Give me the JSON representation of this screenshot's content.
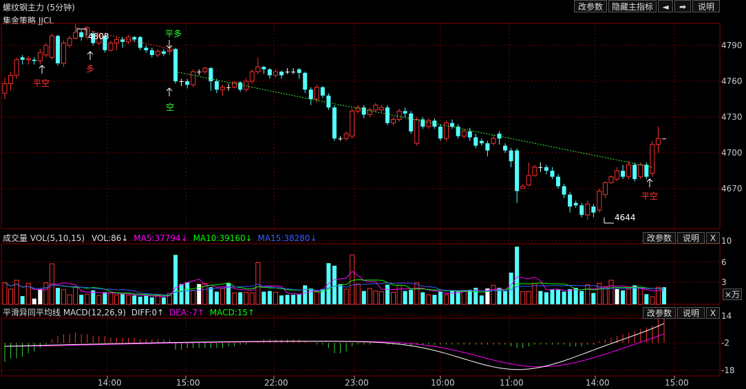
{
  "header": {
    "title": "螺纹钢主力 (5分钟)",
    "strategy": "集金策略 JJCL",
    "btn_params": "改参数",
    "btn_hide": "隐藏主指标",
    "btn_left": "◄",
    "btn_right": "➡",
    "btn_help": "说明"
  },
  "price_axis": [
    "4790",
    "4760",
    "4730",
    "4700",
    "4670"
  ],
  "annotations": {
    "high": "4808",
    "low": "4644",
    "flat_long": "平多",
    "long": "多",
    "short": "空",
    "flat_short_1": "平空",
    "flat_short_2": "平空"
  },
  "volume": {
    "title": "成交量 VOL(5,10,15)",
    "vol": "VOL:86↓",
    "ma5": "MA5:37794↓",
    "ma10": "MA10:39160↓",
    "ma15": "MA15:38280↓",
    "axis": [
      "10",
      "6",
      "3"
    ],
    "unit": "×万",
    "btn_params": "改参数",
    "btn_help": "说明",
    "btn_close": "X"
  },
  "macd": {
    "title": "平滑异同平均线 MACD(12,26,9)",
    "diff": "DIFF:0↑",
    "dea": "DEA:-7↑",
    "macd": "MACD:15↑",
    "axis": [
      "14",
      "-2",
      "-18"
    ],
    "btn_params": "改参数",
    "btn_help": "说明",
    "btn_close": "X"
  },
  "time_axis": [
    "14:00",
    "15:00",
    "22:00",
    "23:00",
    "10:00",
    "11:00",
    "14:00",
    "15:00"
  ],
  "colors": {
    "up": "#ff3232",
    "down": "#54ffff",
    "ma5": "#ff00ff",
    "ma10": "#00ff00",
    "ma15": "#3a5cff",
    "diff": "#ffffff",
    "dea": "#ff00ff",
    "grid": "#7a0000"
  },
  "candles": [
    [
      4750,
      4758,
      4763,
      4745
    ],
    [
      4758,
      4765,
      4768,
      4752
    ],
    [
      4765,
      4778,
      4780,
      4762
    ],
    [
      4780,
      4778,
      4782,
      4774
    ],
    [
      4778,
      4779,
      4781,
      4774
    ],
    [
      4778,
      4777,
      4780,
      4774
    ],
    [
      4777,
      4784,
      4787,
      4774
    ],
    [
      4782,
      4790,
      4792,
      4780
    ],
    [
      4780,
      4798,
      4800,
      4778
    ],
    [
      4798,
      4775,
      4799,
      4773
    ],
    [
      4775,
      4792,
      4794,
      4772
    ],
    [
      4790,
      4796,
      4798,
      4788
    ],
    [
      4796,
      4801,
      4808,
      4795
    ],
    [
      4801,
      4797,
      4803,
      4794
    ],
    [
      4797,
      4805,
      4806,
      4795
    ],
    [
      4800,
      4792,
      4802,
      4790
    ],
    [
      4792,
      4798,
      4800,
      4790
    ],
    [
      4798,
      4786,
      4799,
      4784
    ],
    [
      4786,
      4792,
      4794,
      4785
    ],
    [
      4792,
      4795,
      4797,
      4786
    ],
    [
      4795,
      4793,
      4797,
      4788
    ],
    [
      4793,
      4797,
      4799,
      4791
    ],
    [
      4797,
      4795,
      4798,
      4793
    ],
    [
      4797,
      4788,
      4798,
      4786
    ],
    [
      4788,
      4786,
      4790,
      4784
    ],
    [
      4786,
      4782,
      4788,
      4780
    ],
    [
      4782,
      4785,
      4787,
      4780
    ],
    [
      4785,
      4783,
      4787,
      4781
    ],
    [
      4785,
      4786,
      4788,
      4782
    ],
    [
      4787,
      4760,
      4788,
      4758
    ],
    [
      4760,
      4760,
      4762,
      4756
    ],
    [
      4760,
      4757,
      4762,
      4754
    ],
    [
      4757,
      4768,
      4770,
      4755
    ],
    [
      4768,
      4768,
      4770,
      4765
    ],
    [
      4768,
      4771,
      4772,
      4766
    ],
    [
      4771,
      4760,
      4772,
      4752
    ],
    [
      4760,
      4753,
      4762,
      4750
    ],
    [
      4753,
      4755,
      4757,
      4748
    ],
    [
      4755,
      4755,
      4758,
      4752
    ],
    [
      4755,
      4759,
      4760,
      4754
    ],
    [
      4759,
      4753,
      4760,
      4751
    ],
    [
      4753,
      4760,
      4763,
      4751
    ],
    [
      4760,
      4768,
      4770,
      4758
    ],
    [
      4768,
      4772,
      4780,
      4766
    ],
    [
      4772,
      4770,
      4773,
      4766
    ],
    [
      4770,
      4765,
      4771,
      4762
    ],
    [
      4765,
      4768,
      4770,
      4763
    ],
    [
      4768,
      4765,
      4769,
      4762
    ],
    [
      4768,
      4768,
      4771,
      4766
    ],
    [
      4768,
      4768,
      4771,
      4766
    ],
    [
      4770,
      4767,
      4771,
      4762
    ],
    [
      4767,
      4753,
      4768,
      4750
    ],
    [
      4753,
      4745,
      4755,
      4740
    ],
    [
      4745,
      4755,
      4757,
      4742
    ],
    [
      4755,
      4748,
      4756,
      4746
    ],
    [
      4748,
      4738,
      4750,
      4736
    ],
    [
      4738,
      4712,
      4740,
      4710
    ],
    [
      4712,
      4712,
      4714,
      4710
    ],
    [
      4712,
      4716,
      4718,
      4710
    ],
    [
      4714,
      4735,
      4737,
      4712
    ],
    [
      4735,
      4738,
      4740,
      4733
    ],
    [
      4738,
      4732,
      4740,
      4729
    ],
    [
      4732,
      4736,
      4738,
      4730
    ],
    [
      4736,
      4740,
      4742,
      4734
    ],
    [
      4736,
      4738,
      4740,
      4734
    ],
    [
      4738,
      4725,
      4740,
      4723
    ],
    [
      4725,
      4728,
      4730,
      4723
    ],
    [
      4728,
      4735,
      4737,
      4726
    ],
    [
      4735,
      4733,
      4738,
      4730
    ],
    [
      4733,
      4718,
      4735,
      4716
    ],
    [
      4708,
      4728,
      4730,
      4706
    ],
    [
      4728,
      4722,
      4730,
      4720
    ],
    [
      4722,
      4727,
      4729,
      4720
    ],
    [
      4727,
      4722,
      4729,
      4720
    ],
    [
      4722,
      4712,
      4724,
      4710
    ],
    [
      4712,
      4725,
      4727,
      4710
    ],
    [
      4725,
      4722,
      4728,
      4720
    ],
    [
      4722,
      4714,
      4724,
      4712
    ],
    [
      4714,
      4718,
      4720,
      4712
    ],
    [
      4718,
      4713,
      4721,
      4710
    ],
    [
      4713,
      4706,
      4716,
      4704
    ],
    [
      4710,
      4708,
      4712,
      4706
    ],
    [
      4708,
      4702,
      4710,
      4697
    ],
    [
      4708,
      4712,
      4715,
      4706
    ],
    [
      4716,
      4712,
      4718,
      4707
    ],
    [
      4706,
      4702,
      4708,
      4700
    ],
    [
      4702,
      4693,
      4704,
      4688
    ],
    [
      4702,
      4668,
      4704,
      4658
    ],
    [
      4670,
      4672,
      4674,
      4670
    ],
    [
      4673,
      4681,
      4692,
      4672
    ],
    [
      4681,
      4688,
      4690,
      4680
    ],
    [
      4688,
      4688,
      4692,
      4684
    ],
    [
      4688,
      4685,
      4690,
      4682
    ],
    [
      4685,
      4680,
      4688,
      4678
    ],
    [
      4680,
      4672,
      4682,
      4670
    ],
    [
      4672,
      4665,
      4674,
      4662
    ],
    [
      4665,
      4655,
      4667,
      4650
    ],
    [
      4658,
      4656,
      4660,
      4654
    ],
    [
      4656,
      4648,
      4658,
      4646
    ],
    [
      4648,
      4657,
      4660,
      4644
    ],
    [
      4655,
      4650,
      4657,
      4646
    ],
    [
      4652,
      4668,
      4670,
      4650
    ],
    [
      4665,
      4675,
      4676,
      4662
    ],
    [
      4675,
      4680,
      4681,
      4674
    ],
    [
      4678,
      4685,
      4688,
      4676
    ],
    [
      4685,
      4680,
      4690,
      4678
    ],
    [
      4680,
      4690,
      4693,
      4678
    ],
    [
      4690,
      4678,
      4692,
      4676
    ],
    [
      4680,
      4690,
      4692,
      4678
    ],
    [
      4690,
      4680,
      4692,
      4678
    ],
    [
      4683,
      4707,
      4710,
      4680
    ],
    [
      4707,
      4712,
      4722,
      4700
    ],
    [
      4712,
      4712,
      4712,
      4712
    ]
  ],
  "volumes": [
    3.4,
    2.4,
    3.8,
    1.3,
    3.3,
    0.9,
    2.4,
    3.4,
    6.4,
    2.6,
    2.3,
    1.5,
    2.7,
    1.5,
    1.6,
    2.2,
    1.4,
    1.9,
    1.8,
    1.5,
    1.6,
    1.4,
    1.4,
    1.2,
    1.4,
    1.1,
    1.4,
    1.1,
    1.7,
    7.8,
    3.2,
    3.5,
    2.2,
    3.2,
    3.3,
    2.7,
    2.0,
    2.5,
    3.4,
    1.8,
    1.9,
    1.9,
    1.8,
    6.6,
    2.0,
    2.1,
    1.9,
    1.4,
    1.5,
    1.5,
    1.6,
    3.0,
    2.5,
    2.0,
    2.4,
    6.5,
    6.1,
    3.2,
    2.4,
    7.8,
    3.2,
    2.1,
    2.5,
    2.1,
    2.0,
    3.1,
    1.9,
    3.0,
    2.1,
    2.3,
    3.4,
    1.9,
    1.5,
    1.5,
    2.0,
    1.5,
    2.2,
    2.1,
    2.2,
    2.3,
    2.6,
    1.4,
    2.5,
    3.0,
    2.6,
    2.1,
    5.0,
    9.1,
    2.0,
    2.0,
    3.3,
    2.1,
    1.9,
    2.4,
    2.3,
    2.0,
    2.4,
    2.6,
    2.1,
    3.1,
    1.8,
    3.3,
    2.8,
    3.8,
    2.4,
    2.2,
    2.4,
    3.0,
    2.5,
    1.6,
    1.2,
    2.7,
    2.7
  ],
  "white_vol_idx": [
    5,
    6,
    33,
    82,
    104
  ],
  "macd_hist": [
    -11,
    -9,
    -9,
    -8,
    -6,
    -5,
    -3,
    -1,
    2,
    4,
    5,
    5,
    6,
    5,
    5,
    4,
    4,
    4,
    3,
    3,
    3,
    3,
    3,
    2,
    2,
    2,
    2,
    2,
    2,
    -4,
    -4,
    -3,
    -3,
    -3,
    -3,
    -3,
    -3,
    -3,
    -2,
    -2,
    -1,
    -1,
    0,
    1,
    2,
    2,
    2,
    2,
    2,
    2,
    2,
    1,
    0,
    -1,
    -1,
    -3,
    -6,
    -6,
    -5,
    -2,
    -1,
    -1,
    -1,
    0,
    0,
    -1,
    -1,
    -1,
    -1,
    -2,
    -1,
    -1,
    -1,
    -1,
    -1,
    -1,
    -1,
    -1,
    -1,
    -1,
    -1,
    -1,
    -1,
    -1,
    -1,
    -1,
    -2,
    -3,
    -3,
    -2,
    -1,
    -1,
    -1,
    -1,
    -1,
    -1,
    -2,
    -2,
    -2,
    -1,
    -1,
    1,
    2,
    3,
    4,
    5,
    6,
    7,
    8,
    9,
    10,
    14,
    15
  ]
}
